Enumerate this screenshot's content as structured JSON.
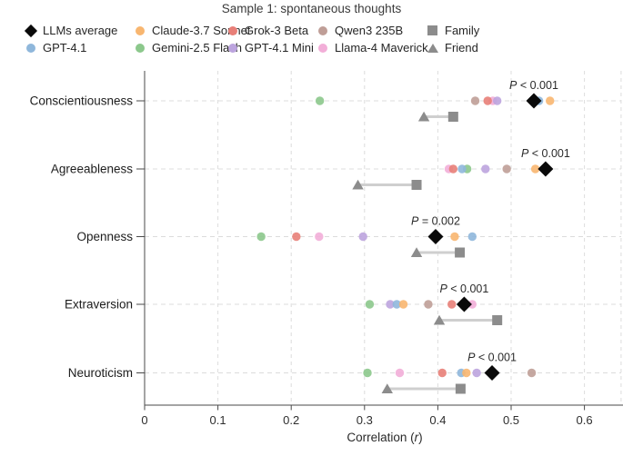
{
  "title": "Sample 1: spontaneous thoughts",
  "legend": {
    "columns": [
      [
        {
          "label": "LLMs average",
          "marker": "diamond",
          "color": "#0a0a0a"
        },
        {
          "label": "GPT-4.1",
          "marker": "dot",
          "color": "#8fb7db"
        }
      ],
      [
        {
          "label": "Claude-3.7 Sonnet",
          "marker": "dot",
          "color": "#f8b670"
        },
        {
          "label": "Gemini-2.5 Flash",
          "marker": "dot",
          "color": "#8cc88c"
        }
      ],
      [
        {
          "label": "Grok-3 Beta",
          "marker": "dot",
          "color": "#e87f78"
        },
        {
          "label": "GPT-4.1 Mini",
          "marker": "dot",
          "color": "#bca4de"
        }
      ],
      [
        {
          "label": "Qwen3 235B",
          "marker": "dot",
          "color": "#bf9e97"
        },
        {
          "label": "Llama-4 Maverick",
          "marker": "dot",
          "color": "#f2aed8"
        }
      ],
      [
        {
          "label": "Family",
          "marker": "square",
          "color": "#8c8c8c"
        },
        {
          "label": "Friend",
          "marker": "triangle",
          "color": "#8c8c8c"
        }
      ]
    ]
  },
  "chart_data": {
    "type": "scatter",
    "title": "Sample 1: spontaneous thoughts",
    "xlabel": "Correlation (r)",
    "xlim": [
      0,
      0.65
    ],
    "x_ticks": [
      0,
      0.1,
      0.2,
      0.3,
      0.4,
      0.5,
      0.6
    ],
    "x_tick_labels": [
      "0",
      "0.1",
      "0.2",
      "0.3",
      "0.4",
      "0.5",
      "0.6"
    ],
    "grid": true,
    "legend_position": "top",
    "colors": {
      "LLMs average": "#0a0a0a",
      "GPT-4.1": "#8fb7db",
      "Claude-3.7 Sonnet": "#f8b670",
      "Gemini-2.5 Flash": "#8cc88c",
      "Grok-3 Beta": "#e87f78",
      "GPT-4.1 Mini": "#bca4de",
      "Qwen3 235B": "#bf9e97",
      "Llama-4 Maverick": "#f2aed8",
      "Family": "#8c8c8c",
      "Friend": "#8c8c8c",
      "grid": "#dcdcdc",
      "axis": "#4a4a4a",
      "connector": "#cfcfcf"
    },
    "traits": [
      {
        "label": "Conscientiousness",
        "p_label": "P < 0.001",
        "llms_average": 0.531,
        "models": {
          "GPT-4.1": 0.538,
          "Claude-3.7 Sonnet": 0.553,
          "Gemini-2.5 Flash": 0.239,
          "Grok-3 Beta": 0.468,
          "GPT-4.1 Mini": 0.481,
          "Qwen3 235B": 0.451,
          "Llama-4 Maverick": 0.475
        },
        "family": 0.421,
        "friend": 0.381
      },
      {
        "label": "Agreeableness",
        "p_label": "P < 0.001",
        "llms_average": 0.547,
        "models": {
          "GPT-4.1": 0.433,
          "Claude-3.7 Sonnet": 0.533,
          "Gemini-2.5 Flash": 0.44,
          "Grok-3 Beta": 0.421,
          "GPT-4.1 Mini": 0.465,
          "Qwen3 235B": 0.494,
          "Llama-4 Maverick": 0.415
        },
        "family": 0.371,
        "friend": 0.291
      },
      {
        "label": "Openness",
        "p_label": "P = 0.002",
        "llms_average": 0.397,
        "models": {
          "GPT-4.1": 0.447,
          "Claude-3.7 Sonnet": 0.423,
          "Gemini-2.5 Flash": 0.159,
          "Grok-3 Beta": 0.207,
          "GPT-4.1 Mini": 0.298,
          "Qwen3 235B": 0.397,
          "Llama-4 Maverick": 0.238
        },
        "family": 0.43,
        "friend": 0.371
      },
      {
        "label": "Extraversion",
        "p_label": "P < 0.001",
        "llms_average": 0.436,
        "models": {
          "GPT-4.1": 0.344,
          "Claude-3.7 Sonnet": 0.353,
          "Gemini-2.5 Flash": 0.307,
          "Grok-3 Beta": 0.419,
          "GPT-4.1 Mini": 0.335,
          "Qwen3 235B": 0.387,
          "Llama-4 Maverick": 0.447
        },
        "family": 0.481,
        "friend": 0.402
      },
      {
        "label": "Neuroticism",
        "p_label": "P < 0.001",
        "llms_average": 0.474,
        "models": {
          "GPT-4.1": 0.432,
          "Claude-3.7 Sonnet": 0.439,
          "Gemini-2.5 Flash": 0.304,
          "Grok-3 Beta": 0.406,
          "GPT-4.1 Mini": 0.453,
          "Qwen3 235B": 0.528,
          "Llama-4 Maverick": 0.348
        },
        "family": 0.431,
        "friend": 0.331
      }
    ]
  }
}
